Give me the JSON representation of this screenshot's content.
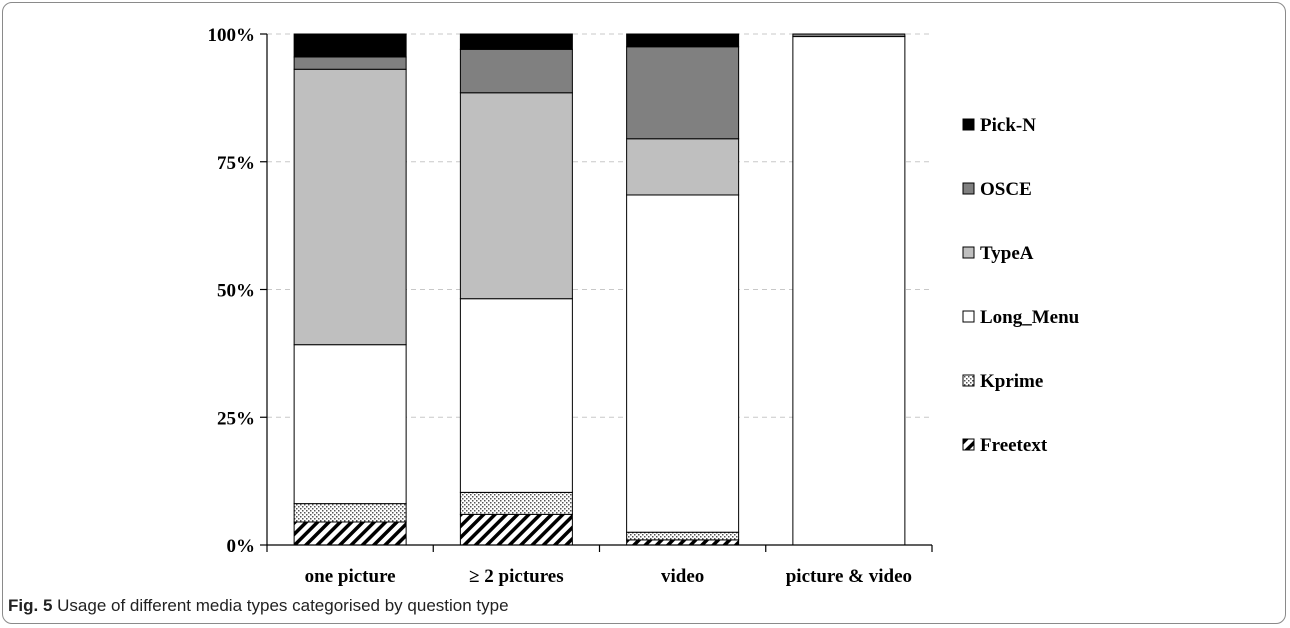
{
  "chart_data": {
    "type": "bar",
    "stacked": true,
    "percent": true,
    "categories": [
      "one picture",
      "≥ 2 pictures",
      "video",
      "picture & video"
    ],
    "series": [
      {
        "name": "Freetext",
        "pattern": "diagonal-hatch",
        "color": "#000000",
        "values": [
          4.5,
          6.0,
          1.0,
          0.0
        ]
      },
      {
        "name": "Kprime",
        "pattern": "dots",
        "color": "#7a7a7a",
        "values": [
          3.6,
          4.3,
          1.5,
          0.0
        ]
      },
      {
        "name": "Long_Menu",
        "pattern": "solid",
        "color": "#ffffff",
        "values": [
          31.1,
          37.9,
          66.0,
          99.5
        ]
      },
      {
        "name": "TypeA",
        "pattern": "solid",
        "color": "#bfbfbf",
        "values": [
          53.9,
          40.3,
          11.0,
          0.0
        ]
      },
      {
        "name": "OSCE",
        "pattern": "solid",
        "color": "#808080",
        "values": [
          2.4,
          8.5,
          18.0,
          0.5
        ]
      },
      {
        "name": "Pick-N",
        "pattern": "solid",
        "color": "#000000",
        "values": [
          4.5,
          3.0,
          2.5,
          0.0
        ]
      }
    ],
    "y_ticks": [
      "0%",
      "25%",
      "50%",
      "75%",
      "100%"
    ],
    "ylim": [
      0,
      100
    ],
    "legend_order": [
      "Pick-N",
      "OSCE",
      "TypeA",
      "Long_Menu",
      "Kprime",
      "Freetext"
    ],
    "legend_position": "right",
    "grid": "horizontal dashed"
  },
  "caption": {
    "label": "Fig. 5",
    "text": " Usage of different media types categorised by question type"
  }
}
